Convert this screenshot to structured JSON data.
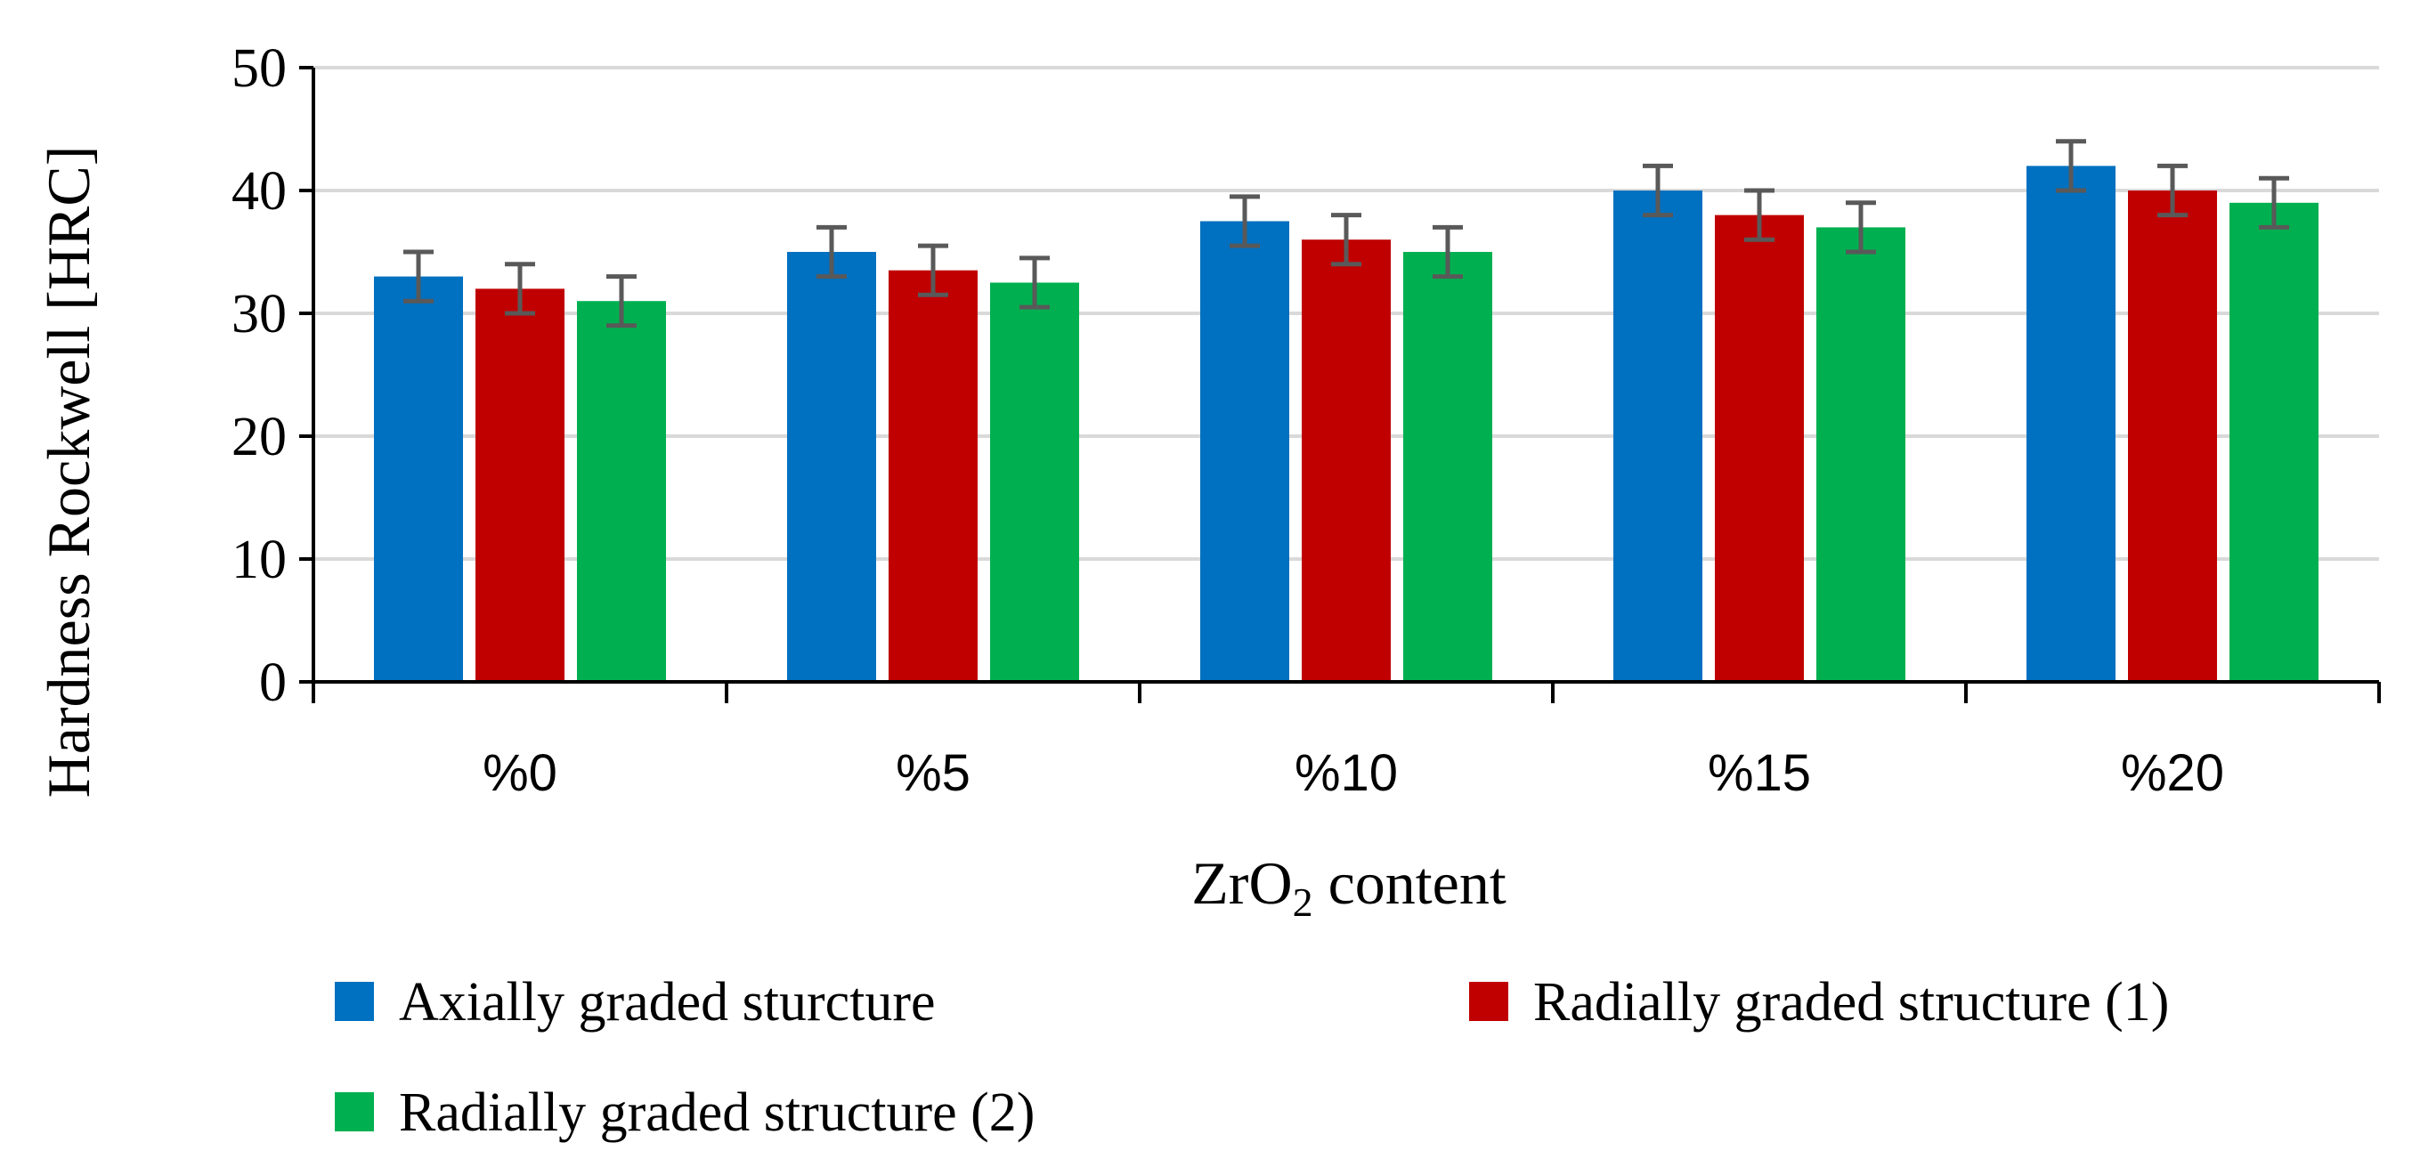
{
  "chart_data": {
    "type": "bar",
    "title": "",
    "xlabel": "ZrO2 content",
    "xlabel_main": "ZrO",
    "xlabel_sub": "2",
    "xlabel_rest": " content",
    "ylabel": "Hardness Rockwell [HRC]",
    "ylim": [
      0,
      50
    ],
    "yticks": [
      "0",
      "10",
      "20",
      "30",
      "40",
      "50"
    ],
    "grid": true,
    "legend_position": "bottom",
    "categories": [
      "%0",
      "%5",
      "%10",
      "%15",
      "%20"
    ],
    "series": [
      {
        "name": "Axially graded sturcture",
        "color": "#0070C0",
        "values": [
          33,
          35,
          37.5,
          40,
          42
        ],
        "errors": [
          2,
          2,
          2,
          2,
          2
        ]
      },
      {
        "name": "Radially graded structure (1)",
        "color": "#C00000",
        "values": [
          32,
          33.5,
          36,
          38,
          40
        ],
        "errors": [
          2,
          2,
          2,
          2,
          2
        ]
      },
      {
        "name": "Radially graded structure (2)",
        "color": "#00B050",
        "values": [
          31,
          32.5,
          35,
          37,
          39
        ],
        "errors": [
          2,
          2,
          2,
          2,
          2
        ]
      }
    ]
  }
}
